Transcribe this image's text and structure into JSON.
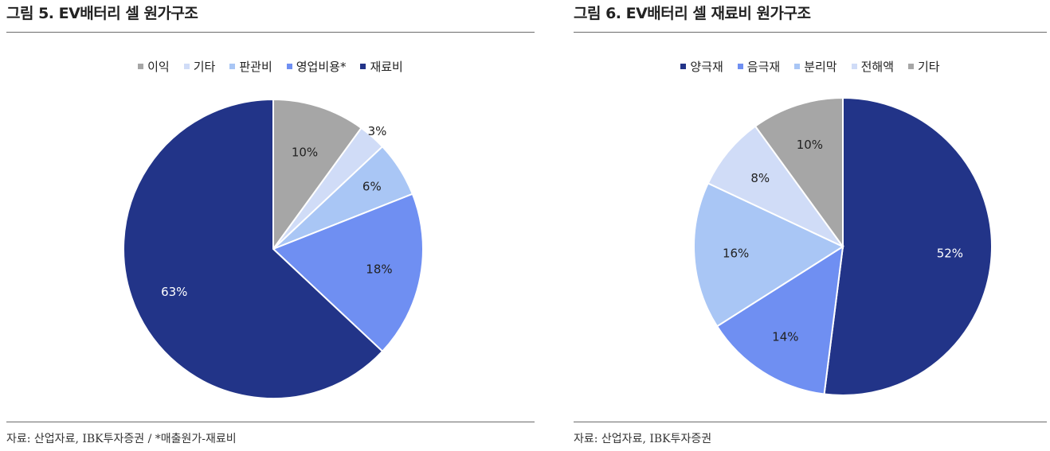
{
  "left": {
    "title": "그림 5. EV배터리 셀 원가구조",
    "source": "자료: 산업자료, IBK투자증권 / *매출원가-재료비",
    "legend": [
      "이익",
      "기타",
      "판관비",
      "영업비용*",
      "재료비"
    ]
  },
  "right": {
    "title": "그림 6. EV배터리 셀 재료비 원가구조",
    "source": "자료: 산업자료, IBK투자증권",
    "legend": [
      "양극재",
      "음극재",
      "분리막",
      "전해액",
      "기타"
    ]
  },
  "chart_data": [
    {
      "type": "pie",
      "title": "그림 5. EV배터리 셀 원가구조",
      "start": "12 o'clock, clockwise",
      "slices": [
        {
          "label": "이익",
          "value": 10,
          "text": "10%",
          "color": "#a6a6a6"
        },
        {
          "label": "기타",
          "value": 3,
          "text": "3%",
          "color": "#d0dcf7"
        },
        {
          "label": "판관비",
          "value": 6,
          "text": "6%",
          "color": "#a9c6f5"
        },
        {
          "label": "영업비용*",
          "value": 18,
          "text": "18%",
          "color": "#6f8ff2"
        },
        {
          "label": "재료비",
          "value": 63,
          "text": "63%",
          "color": "#223488"
        }
      ]
    },
    {
      "type": "pie",
      "title": "그림 6. EV배터리 셀 재료비 원가구조",
      "start": "12 o'clock, clockwise",
      "slices": [
        {
          "label": "양극재",
          "value": 52,
          "text": "52%",
          "color": "#223488"
        },
        {
          "label": "음극재",
          "value": 14,
          "text": "14%",
          "color": "#6f8ff2"
        },
        {
          "label": "분리막",
          "value": 16,
          "text": "16%",
          "color": "#a9c6f5"
        },
        {
          "label": "전해액",
          "value": 8,
          "text": "8%",
          "color": "#d0dcf7"
        },
        {
          "label": "기타",
          "value": 10,
          "text": "10%",
          "color": "#a6a6a6"
        }
      ]
    }
  ]
}
